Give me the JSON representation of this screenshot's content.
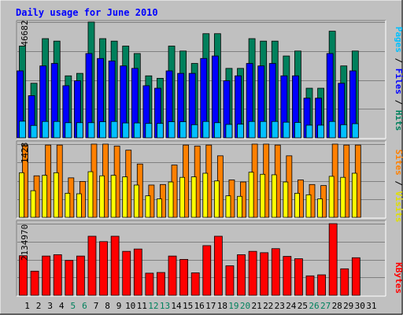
{
  "colors": {
    "background": "#c0c0c0",
    "title": "#0000ff",
    "hits": "#00805c",
    "files": "#0000ff",
    "pages": "#00c0ff",
    "visits": "#ffff00",
    "sites": "#ff8000",
    "kbytes": "#ff0000",
    "weekday": "#000000",
    "weekend": "#00805c"
  },
  "chart_data": [
    {
      "type": "bar",
      "title": "Daily usage for June 2010",
      "panel": "hits-files-pages",
      "x": [
        1,
        2,
        3,
        4,
        5,
        6,
        7,
        8,
        9,
        10,
        11,
        12,
        13,
        14,
        15,
        16,
        17,
        18,
        19,
        20,
        21,
        22,
        23,
        24,
        25,
        26,
        27,
        28,
        29,
        30,
        31
      ],
      "weekend_days": [
        5,
        6,
        12,
        13,
        19,
        20,
        26,
        27
      ],
      "ymax_label": "46682",
      "ylim": [
        0,
        46682
      ],
      "right_labels": [
        "Pages",
        "Files",
        "Hits"
      ],
      "series": [
        {
          "name": "Hits",
          "values": [
            37000,
            22000,
            40000,
            39000,
            25000,
            26000,
            46682,
            40000,
            39000,
            37000,
            34000,
            25000,
            24000,
            37000,
            35000,
            30000,
            42000,
            42000,
            28000,
            28000,
            40000,
            39000,
            39000,
            33000,
            35000,
            20000,
            20000,
            43000,
            29000,
            35000,
            0
          ]
        },
        {
          "name": "Files",
          "values": [
            27000,
            17000,
            29000,
            30000,
            21000,
            23000,
            34000,
            32000,
            31000,
            29000,
            28000,
            21000,
            20000,
            27000,
            26000,
            26000,
            32000,
            33000,
            23000,
            25000,
            30000,
            29000,
            30000,
            25000,
            25000,
            16000,
            16000,
            34000,
            22000,
            27000,
            0
          ]
        },
        {
          "name": "Pages",
          "values": [
            6700,
            5000,
            6600,
            6600,
            6100,
            6100,
            6100,
            6500,
            6600,
            6000,
            6000,
            5800,
            5800,
            6500,
            6500,
            5300,
            6600,
            6100,
            5400,
            5500,
            6600,
            6600,
            6600,
            6300,
            6200,
            5100,
            5100,
            6600,
            5300,
            5700,
            0
          ]
        }
      ]
    },
    {
      "type": "bar",
      "panel": "sites-visits",
      "x": [
        1,
        2,
        3,
        4,
        5,
        6,
        7,
        8,
        9,
        10,
        11,
        12,
        13,
        14,
        15,
        16,
        17,
        18,
        19,
        20,
        21,
        22,
        23,
        24,
        25,
        26,
        27,
        28,
        29,
        30,
        31
      ],
      "ymax_label": "1428",
      "ylim": [
        0,
        1428
      ],
      "right_labels": [
        "Sites",
        "Visits"
      ],
      "series": [
        {
          "name": "Sites",
          "values": [
            1410,
            810,
            1410,
            1410,
            770,
            700,
            1428,
            1428,
            1390,
            1310,
            1040,
            630,
            640,
            1020,
            1410,
            1390,
            1410,
            1200,
            730,
            690,
            1428,
            1428,
            1410,
            1200,
            730,
            640,
            620,
            1428,
            1410,
            1410,
            0
          ]
        },
        {
          "name": "Visits",
          "values": [
            870,
            520,
            820,
            870,
            470,
            460,
            890,
            810,
            820,
            790,
            630,
            420,
            360,
            690,
            780,
            790,
            860,
            710,
            420,
            410,
            880,
            840,
            830,
            690,
            470,
            440,
            360,
            800,
            780,
            860,
            0
          ]
        }
      ]
    },
    {
      "type": "bar",
      "panel": "kbytes",
      "x": [
        1,
        2,
        3,
        4,
        5,
        6,
        7,
        8,
        9,
        10,
        11,
        12,
        13,
        14,
        15,
        16,
        17,
        18,
        19,
        20,
        21,
        22,
        23,
        24,
        25,
        26,
        27,
        28,
        29,
        30,
        31
      ],
      "ymax_label": "2134970",
      "ylim": [
        0,
        2134970
      ],
      "right_labels": [
        "KBytes"
      ],
      "series": [
        {
          "name": "KBytes",
          "values": [
            1180000,
            720000,
            1170000,
            1210000,
            1040000,
            1170000,
            1760000,
            1600000,
            1760000,
            1310000,
            1380000,
            660000,
            680000,
            1170000,
            1070000,
            670000,
            1480000,
            1760000,
            880000,
            1210000,
            1310000,
            1270000,
            1390000,
            1160000,
            1090000,
            580000,
            610000,
            2134970,
            790000,
            1120000,
            0
          ]
        }
      ]
    }
  ]
}
